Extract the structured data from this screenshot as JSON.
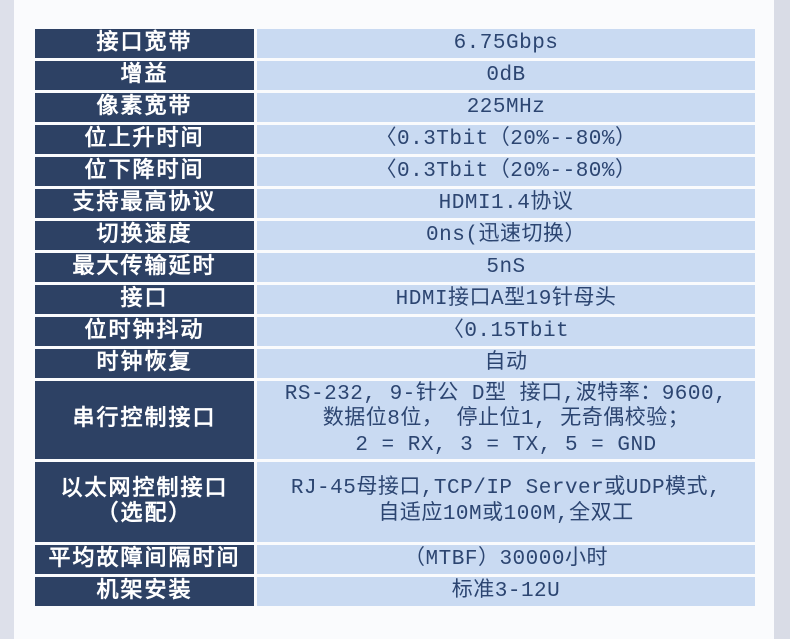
{
  "page": {
    "background_color": "#fafbfd",
    "left_strip_color": "#dde0ea",
    "right_strip_color": "#d9dce6"
  },
  "table": {
    "label_column_color": "#2d4164",
    "value_column_color": "#c9daf2",
    "label_text_color": "#ffffff",
    "value_text_color": "#2c4571",
    "rows": [
      {
        "label": "接口宽带",
        "value": "6.75Gbps"
      },
      {
        "label": "增益",
        "value": "0dB"
      },
      {
        "label": "像素宽带",
        "value": "225MHz"
      },
      {
        "label": "位上升时间",
        "value": "〈0.3Tbit（20%--80%）"
      },
      {
        "label": "位下降时间",
        "value": "〈0.3Tbit（20%--80%）"
      },
      {
        "label": "支持最高协议",
        "value": "HDMI1.4协议"
      },
      {
        "label": "切换速度",
        "value": "0ns(迅速切换）"
      },
      {
        "label": "最大传输延时",
        "value": "5nS"
      },
      {
        "label": "接口",
        "value": "HDMI接口A型19针母头"
      },
      {
        "label": "位时钟抖动",
        "value": "〈0.15Tbit"
      },
      {
        "label": "时钟恢复",
        "value": "自动"
      },
      {
        "label": "串行控制接口",
        "value": "RS-232, 9-针公 D型 接口,波特率：9600,\n数据位8位， 停止位1, 无奇偶校验；\n2 = RX, 3 = TX, 5 = GND"
      },
      {
        "label": "以太网控制接口\n（选配）",
        "value": "RJ-45母接口,TCP/IP Server或UDP模式,\n自适应10M或100M,全双工"
      },
      {
        "label": "平均故障间隔时间",
        "value": "（MTBF）30000小时"
      },
      {
        "label": "机架安装",
        "value": "标准3-12U"
      }
    ]
  }
}
